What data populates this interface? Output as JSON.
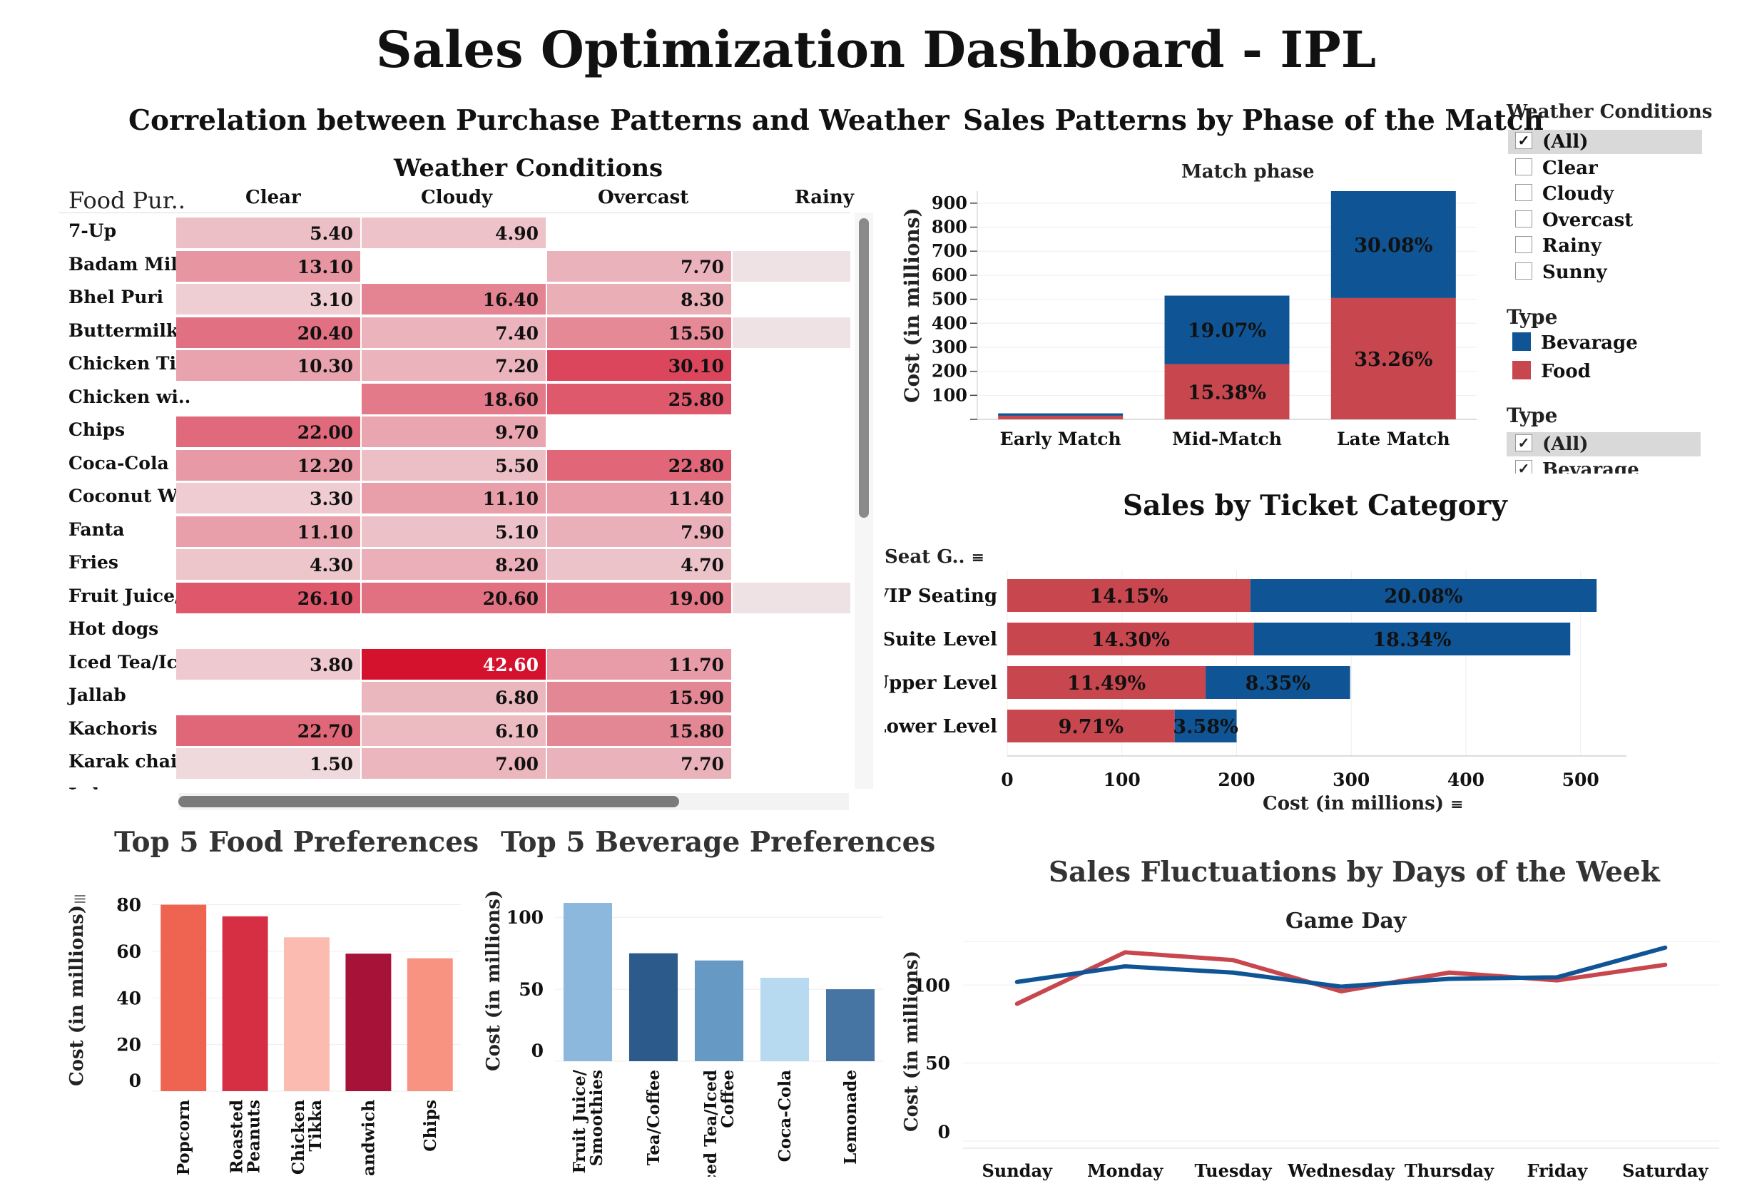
{
  "title": "Sales Optimization Dashboard - IPL",
  "heatmap": {
    "title": "Correlation between Purchase Patterns and Weather",
    "col_group_title": "Weather Conditions",
    "row_header": "Food Pur..",
    "columns": [
      "Clear",
      "Cloudy",
      "Overcast",
      "Rainy"
    ],
    "rows": [
      {
        "label": "7-Up",
        "values": [
          "5.40",
          "4.90",
          "",
          ""
        ]
      },
      {
        "label": "Badam Milk",
        "values": [
          "13.10",
          "",
          "7.70",
          ""
        ]
      },
      {
        "label": "Bhel Puri",
        "values": [
          "3.10",
          "16.40",
          "8.30",
          ""
        ]
      },
      {
        "label": "Buttermilk",
        "values": [
          "20.40",
          "7.40",
          "15.50",
          ""
        ]
      },
      {
        "label": "Chicken Tik..",
        "values": [
          "10.30",
          "7.20",
          "30.10",
          ""
        ]
      },
      {
        "label": "Chicken wi..",
        "values": [
          "",
          "18.60",
          "25.80",
          ""
        ]
      },
      {
        "label": "Chips",
        "values": [
          "22.00",
          "9.70",
          "",
          ""
        ]
      },
      {
        "label": "Coca-Cola",
        "values": [
          "12.20",
          "5.50",
          "22.80",
          ""
        ]
      },
      {
        "label": "Coconut W..",
        "values": [
          "3.30",
          "11.10",
          "11.40",
          ""
        ]
      },
      {
        "label": "Fanta",
        "values": [
          "11.10",
          "5.10",
          "7.90",
          ""
        ]
      },
      {
        "label": "Fries",
        "values": [
          "4.30",
          "8.20",
          "4.70",
          ""
        ]
      },
      {
        "label": "Fruit Juice/..",
        "values": [
          "26.10",
          "20.60",
          "19.00",
          ""
        ]
      },
      {
        "label": "Hot dogs",
        "values": [
          "",
          "",
          "",
          ""
        ]
      },
      {
        "label": "Iced Tea/Ic..",
        "values": [
          "3.80",
          "42.60",
          "11.70",
          ""
        ]
      },
      {
        "label": "Jallab",
        "values": [
          "",
          "6.80",
          "15.90",
          ""
        ]
      },
      {
        "label": "Kachoris",
        "values": [
          "22.70",
          "6.10",
          "15.80",
          ""
        ]
      },
      {
        "label": "Karak chai",
        "values": [
          "1.50",
          "7.00",
          "7.70",
          ""
        ]
      },
      {
        "label": "Laban",
        "values": [
          "",
          "",
          "",
          ""
        ]
      }
    ],
    "rainy_shaded_rows": [
      1,
      3,
      11
    ]
  },
  "filters": {
    "weather_title": "Weather Conditions",
    "weather_items": [
      {
        "label": "(All)",
        "checked": true
      },
      {
        "label": "Clear",
        "checked": false
      },
      {
        "label": "Cloudy",
        "checked": false
      },
      {
        "label": "Overcast",
        "checked": false
      },
      {
        "label": "Rainy",
        "checked": false
      },
      {
        "label": "Sunny",
        "checked": false
      }
    ],
    "type_legend_title": "Type",
    "type_legend": [
      {
        "label": "Bevarage",
        "color": "#0f5596"
      },
      {
        "label": "Food",
        "color": "#c8474f"
      }
    ],
    "type_filter_title": "Type",
    "type_filter_items": [
      {
        "label": "(All)",
        "checked": true
      },
      {
        "label": "Bevarage",
        "checked": true
      }
    ]
  },
  "chart_data": [
    {
      "type": "bar",
      "title": "Sales Patterns by Phase of the Match",
      "subtitle": "Match phase",
      "ylabel": "Cost (in millions)",
      "stacked": true,
      "categories": [
        "Early Match",
        "Mid-Match",
        "Late Match"
      ],
      "series": [
        {
          "name": "Food",
          "color": "#c8474f",
          "values": [
            15,
            230,
            505
          ],
          "labels": [
            "",
            "15.38%",
            "33.26%"
          ]
        },
        {
          "name": "Bevarage",
          "color": "#0f5596",
          "values": [
            10,
            285,
            445
          ],
          "labels": [
            "",
            "19.07%",
            "30.08%"
          ]
        }
      ],
      "ylim": [
        0,
        950
      ],
      "yticks": [
        100,
        200,
        300,
        400,
        500,
        600,
        700,
        800,
        900
      ]
    },
    {
      "type": "bar",
      "orientation": "horizontal",
      "title": "Sales by Ticket Category",
      "row_header": "Seat G..",
      "xlabel": "Cost (in millions)",
      "stacked": true,
      "categories": [
        "VIP Seating",
        "Suite Level",
        "Upper Level",
        "Lower Level"
      ],
      "series": [
        {
          "name": "Food",
          "color": "#c8474f",
          "values": [
            212,
            215,
            173,
            146
          ],
          "labels": [
            "14.15%",
            "14.30%",
            "11.49%",
            "9.71%"
          ]
        },
        {
          "name": "Bevarage",
          "color": "#0f5596",
          "values": [
            302,
            276,
            126,
            54
          ],
          "labels": [
            "20.08%",
            "18.34%",
            "8.35%",
            "3.58%"
          ]
        }
      ],
      "xlim": [
        0,
        540
      ],
      "xticks": [
        0,
        100,
        200,
        300,
        400,
        500
      ]
    },
    {
      "type": "bar",
      "title": "Top 5 Food Preferences",
      "ylabel": "Cost (in millions)",
      "categories": [
        "Popcorn",
        "Roasted Peanuts",
        "Chicken Tikka",
        "Sandwich",
        "Chips"
      ],
      "values": [
        80,
        75,
        66,
        59,
        57
      ],
      "colors": [
        "#ef6351",
        "#d62f43",
        "#fbbbb0",
        "#a71338",
        "#f79380"
      ],
      "ylim": [
        0,
        82
      ],
      "yticks": [
        0,
        20,
        40,
        60,
        80
      ]
    },
    {
      "type": "bar",
      "title": "Top 5 Beverage Preferences",
      "ylabel": "Cost (in millions)",
      "categories": [
        "Fruit Juice/ Smoothies",
        "Tea/Coffee",
        "Iced Tea/Iced Coffee",
        "Coca-Cola",
        "Lemonade"
      ],
      "values": [
        110,
        75,
        70,
        58,
        50
      ],
      "colors": [
        "#8bb8dc",
        "#2c5a8b",
        "#6699c3",
        "#b8daf0",
        "#4674a3"
      ],
      "ylim": [
        0,
        112
      ],
      "yticks": [
        0,
        50,
        100
      ]
    },
    {
      "type": "line",
      "title": "Sales Fluctuations by Days of the Week",
      "subtitle": "Game Day",
      "ylabel": "Cost (in millions)",
      "categories": [
        "Sunday",
        "Monday",
        "Tuesday",
        "Wednesday",
        "Thursday",
        "Friday",
        "Saturday"
      ],
      "series": [
        {
          "name": "Food",
          "color": "#c8474f",
          "values": [
            88,
            121,
            116,
            96,
            108,
            103,
            113
          ]
        },
        {
          "name": "Bevarage",
          "color": "#0f5596",
          "values": [
            102,
            112,
            108,
            99,
            104,
            105,
            124
          ]
        }
      ],
      "ylim": [
        0,
        128
      ],
      "yticks": [
        0,
        50,
        100
      ]
    }
  ]
}
